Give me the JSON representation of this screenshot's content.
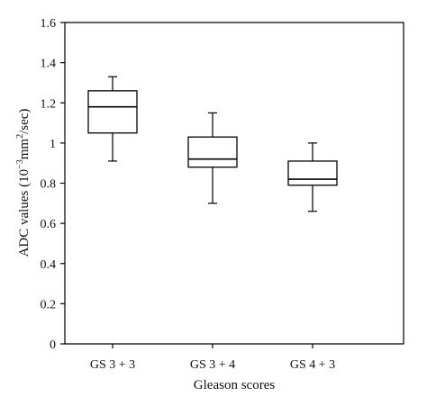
{
  "chart_data": {
    "type": "box",
    "xlabel": "Gleason scores",
    "ylabel": {
      "prefix": "ADC values (10",
      "exp1": "−3",
      "mid": "mm",
      "exp2": "2",
      "suffix": "/sec)"
    },
    "ylim": [
      0,
      1.6
    ],
    "yticks": [
      "0",
      "0.2",
      "0.4",
      "0.6",
      "0.8",
      "1",
      "1.2",
      "1.4",
      "1.6"
    ],
    "categories": [
      "GS 3 + 3",
      "GS 3 + 4",
      "GS 4 + 3"
    ],
    "series": [
      {
        "boxes": [
          {
            "min": 0.91,
            "q1": 1.05,
            "median": 1.18,
            "q3": 1.26,
            "max": 1.33
          },
          {
            "min": 0.7,
            "q1": 0.88,
            "median": 0.92,
            "q3": 1.03,
            "max": 1.15
          },
          {
            "min": 0.66,
            "q1": 0.79,
            "median": 0.82,
            "q3": 0.91,
            "max": 1.0
          }
        ]
      }
    ],
    "grid": false,
    "legend": "none"
  }
}
